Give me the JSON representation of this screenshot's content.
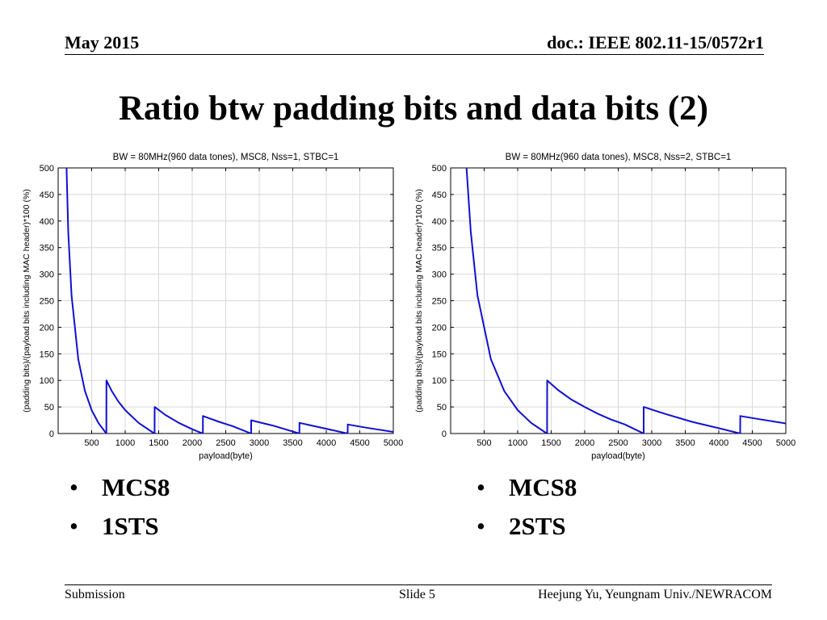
{
  "header": {
    "date": "May 2015",
    "doc": "doc.: IEEE 802.11-15/0572r1"
  },
  "slide": {
    "title": "Ratio btw padding bits and data bits (2)"
  },
  "left_bullets": [
    "MCS8",
    "1STS"
  ],
  "right_bullets": [
    "MCS8",
    "2STS"
  ],
  "footer": {
    "left": "Submission",
    "center": "Slide 5",
    "right": "Heejung Yu, Yeungnam Univ./NEWRACOM"
  },
  "chart_data": [
    {
      "type": "line",
      "title": "BW = 80MHz(960 data tones), MSC8, Nss=1, STBC=1",
      "xlabel": "payload(byte)",
      "ylabel": "(padding bits)/(payload bits including MAC header)*100 (%)",
      "xlim": [
        0,
        5000
      ],
      "ylim": [
        0,
        500
      ],
      "xticks": [
        500,
        1000,
        1500,
        2000,
        2500,
        3000,
        3500,
        4000,
        4500,
        5000
      ],
      "yticks": [
        0,
        50,
        100,
        150,
        200,
        250,
        300,
        350,
        400,
        450,
        500
      ],
      "grid": true,
      "line_color": "#1010d0",
      "series": [
        {
          "x": [
            80,
            100,
            150,
            200,
            300,
            400,
            500,
            600,
            700,
            719,
            720,
            800,
            900,
            1000,
            1200,
            1400,
            1439,
            1440,
            1600,
            1800,
            2000,
            2159,
            2160,
            2400,
            2600,
            2879,
            2880,
            3200,
            3599,
            3600,
            4000,
            4319,
            4320,
            4600,
            5000
          ],
          "y": [
            500,
            620,
            380,
            260,
            140,
            80,
            44,
            20,
            3,
            0,
            100,
            80,
            60,
            44,
            20,
            3,
            0,
            50,
            35,
            20,
            8,
            0,
            33,
            22,
            14,
            0,
            25,
            15,
            0,
            20,
            9,
            0,
            17,
            11,
            3
          ]
        }
      ]
    },
    {
      "type": "line",
      "title": "BW = 80MHz(960 data tones), MSC8, Nss=2, STBC=1",
      "xlabel": "payload(byte)",
      "ylabel": "(padding bits)/(payload bits including MAC header)*100 (%)",
      "xlim": [
        0,
        5000
      ],
      "ylim": [
        0,
        500
      ],
      "xticks": [
        500,
        1000,
        1500,
        2000,
        2500,
        3000,
        3500,
        4000,
        4500,
        5000
      ],
      "yticks": [
        0,
        50,
        100,
        150,
        200,
        250,
        300,
        350,
        400,
        450,
        500
      ],
      "grid": true,
      "line_color": "#1010d0",
      "series": [
        {
          "x": [
            160,
            200,
            300,
            400,
            500,
            600,
            700,
            800,
            1000,
            1200,
            1400,
            1439,
            1440,
            1600,
            1800,
            2000,
            2200,
            2400,
            2600,
            2879,
            2880,
            3200,
            3600,
            4000,
            4319,
            4320,
            4600,
            5000
          ],
          "y": [
            500,
            570,
            380,
            260,
            200,
            140,
            110,
            80,
            44,
            20,
            3,
            0,
            100,
            82,
            64,
            50,
            37,
            26,
            17,
            0,
            50,
            37,
            22,
            10,
            0,
            33,
            27,
            19
          ]
        }
      ]
    }
  ]
}
